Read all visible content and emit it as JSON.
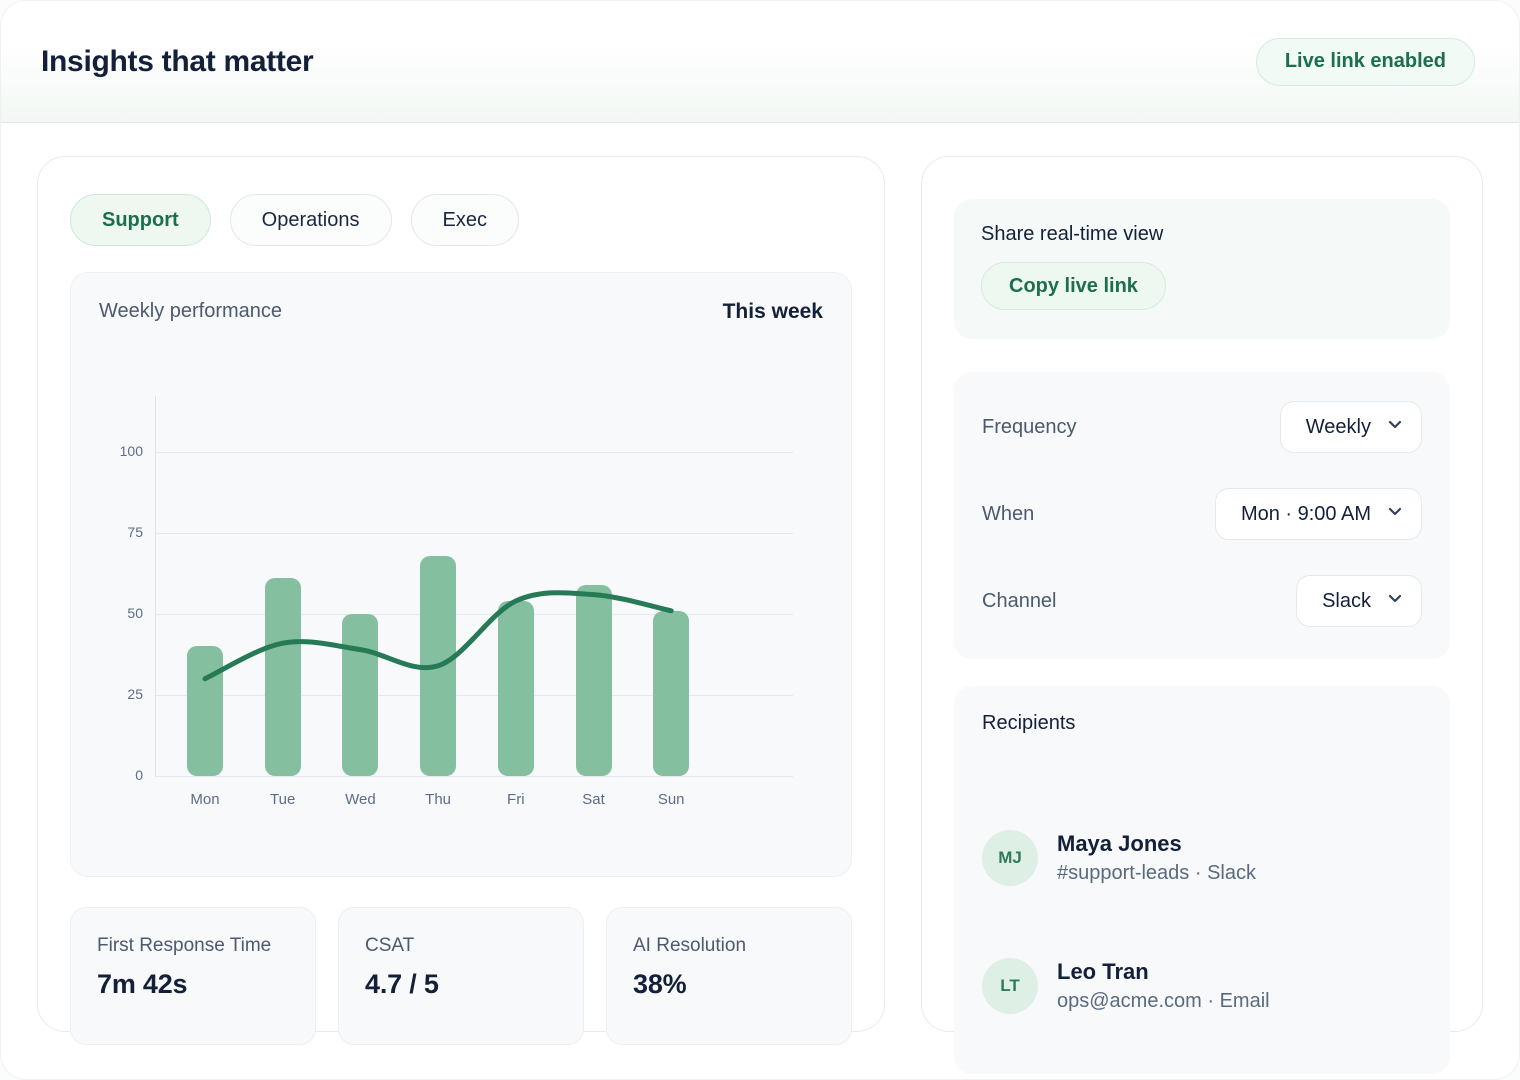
{
  "header": {
    "title": "Insights that matter",
    "badge": "Live link enabled"
  },
  "tabs": [
    {
      "label": "Support",
      "active": true
    },
    {
      "label": "Operations",
      "active": false
    },
    {
      "label": "Exec",
      "active": false
    }
  ],
  "chart_card": {
    "title": "Weekly performance",
    "period": "This week"
  },
  "chart_data": {
    "type": "bar",
    "title": "Weekly performance",
    "subtitle": "This week",
    "categories": [
      "Mon",
      "Tue",
      "Wed",
      "Thu",
      "Fri",
      "Sat",
      "Sun"
    ],
    "series": [
      {
        "name": "daily-volume",
        "type": "bar",
        "values": [
          40,
          61,
          50,
          68,
          54,
          59,
          51
        ]
      },
      {
        "name": "trend",
        "type": "line",
        "values": [
          30,
          41,
          39,
          34,
          54,
          56,
          51
        ]
      }
    ],
    "xlabel": "",
    "ylabel": "",
    "ylim": [
      0,
      100
    ],
    "yticks": [
      0,
      25,
      50,
      75,
      100
    ],
    "grid": true,
    "legend": "none",
    "bar_color": "#84bfa0",
    "line_color": "#277a56"
  },
  "stats": [
    {
      "label": "First Response Time",
      "value": "7m 42s"
    },
    {
      "label": "CSAT",
      "value": "4.7 / 5"
    },
    {
      "label": "AI Resolution",
      "value": "38%"
    }
  ],
  "share": {
    "title": "Share real-time view",
    "button": "Copy live link"
  },
  "settings": {
    "rows": [
      {
        "label": "Frequency",
        "value": "Weekly"
      },
      {
        "label": "When",
        "value": "Mon · 9:00 AM"
      },
      {
        "label": "Channel",
        "value": "Slack"
      }
    ]
  },
  "recipients": {
    "title": "Recipients",
    "items": [
      {
        "initials": "MJ",
        "name": "Maya Jones",
        "detail": "#support-leads · Slack"
      },
      {
        "initials": "LT",
        "name": "Leo Tran",
        "detail": "ops@acme.com · Email"
      }
    ]
  },
  "colors": {
    "accent_green": "#1c6e4e",
    "bar_green": "#84bfa0",
    "line_green": "#277a56",
    "badge_bg": "#f1faf4",
    "text_dark": "#14203a",
    "text_slate": "#4b5a6e"
  }
}
